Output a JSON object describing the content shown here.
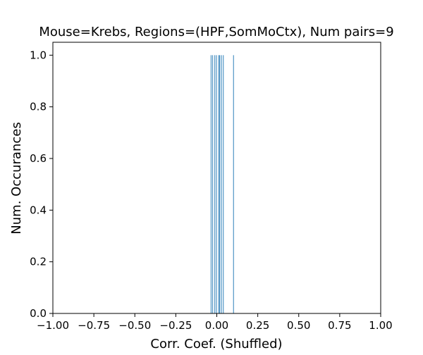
{
  "chart_data": {
    "type": "bar",
    "title": "Mouse=Krebs, Regions=(HPF,SomMoCtx), Num pairs=9",
    "xlabel": "Corr. Coef. (Shuffled)",
    "ylabel": "Num. Occurances",
    "xlim": [
      -1.0,
      1.0
    ],
    "ylim": [
      0.0,
      1.05
    ],
    "x_ticks": [
      -1.0,
      -0.75,
      -0.5,
      -0.25,
      0.0,
      0.25,
      0.5,
      0.75,
      1.0
    ],
    "x_tick_labels": [
      "−1.00",
      "−0.75",
      "−0.50",
      "−0.25",
      "0.00",
      "0.25",
      "0.50",
      "0.75",
      "1.00"
    ],
    "y_ticks": [
      0.0,
      0.2,
      0.4,
      0.6,
      0.8,
      1.0
    ],
    "y_tick_labels": [
      "0.0",
      "0.2",
      "0.4",
      "0.6",
      "0.8",
      "1.0"
    ],
    "bar_width": 0.004,
    "bars": [
      {
        "x": -0.035,
        "count": 1
      },
      {
        "x": -0.025,
        "count": 1
      },
      {
        "x": -0.012,
        "count": 1
      },
      {
        "x": -0.002,
        "count": 1
      },
      {
        "x": 0.012,
        "count": 1
      },
      {
        "x": 0.018,
        "count": 1
      },
      {
        "x": 0.028,
        "count": 1
      },
      {
        "x": 0.04,
        "count": 1
      },
      {
        "x": 0.102,
        "count": 1
      }
    ],
    "bar_color": "#1f77b4",
    "grid": false,
    "legend": "none"
  }
}
